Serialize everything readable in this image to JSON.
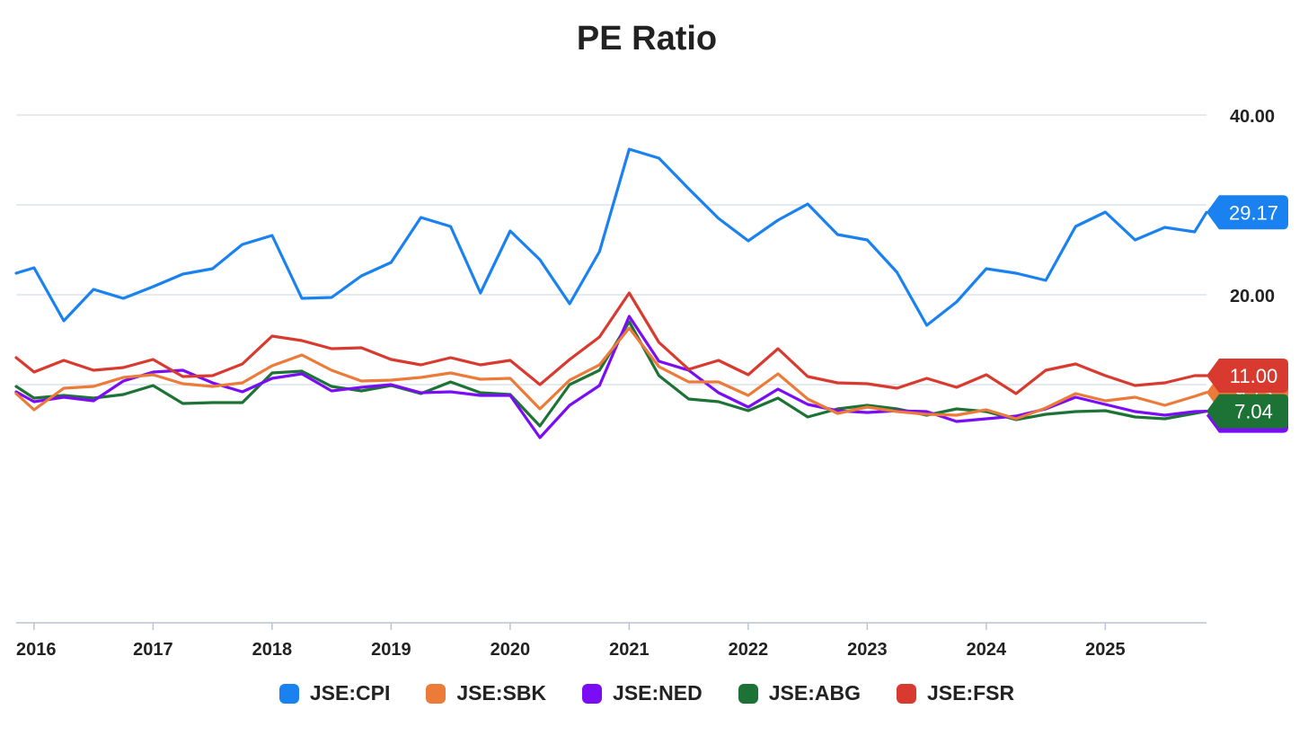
{
  "chart_data": {
    "type": "line",
    "title": "PE Ratio",
    "xlabel": "",
    "ylabel": "",
    "ylim": [
      -16.5,
      40
    ],
    "yticks": [
      {
        "value": 40,
        "label": "40.00"
      },
      {
        "value": 20,
        "label": "20.00"
      }
    ],
    "grid_values": [
      40,
      30,
      20,
      10
    ],
    "xlim": [
      2015.85,
      2025.85
    ],
    "xticks": [
      {
        "value": 2016,
        "label": "2016"
      },
      {
        "value": 2017,
        "label": "2017"
      },
      {
        "value": 2018,
        "label": "2018"
      },
      {
        "value": 2019,
        "label": "2019"
      },
      {
        "value": 2020,
        "label": "2020"
      },
      {
        "value": 2021,
        "label": "2021"
      },
      {
        "value": 2022,
        "label": "2022"
      },
      {
        "value": 2023,
        "label": "2023"
      },
      {
        "value": 2024,
        "label": "2024"
      },
      {
        "value": 2025,
        "label": "2025"
      }
    ],
    "x": [
      2015.85,
      2016.0,
      2016.25,
      2016.5,
      2016.75,
      2017.0,
      2017.25,
      2017.5,
      2017.75,
      2018.0,
      2018.25,
      2018.5,
      2018.75,
      2019.0,
      2019.25,
      2019.5,
      2019.75,
      2020.0,
      2020.25,
      2020.5,
      2020.75,
      2021.0,
      2021.25,
      2021.5,
      2021.75,
      2022.0,
      2022.25,
      2022.5,
      2022.75,
      2023.0,
      2023.25,
      2023.5,
      2023.75,
      2024.0,
      2024.25,
      2024.5,
      2024.75,
      2025.0,
      2025.25,
      2025.5,
      2025.75,
      2025.85
    ],
    "legend_position": "bottom",
    "series": [
      {
        "name": "JSE:CPI",
        "color": "#1a82f0",
        "end_label": "29.17",
        "values": [
          22.4,
          23.0,
          17.1,
          20.6,
          19.6,
          20.9,
          22.3,
          22.9,
          25.6,
          26.6,
          19.6,
          19.7,
          22.1,
          23.6,
          28.6,
          27.6,
          20.2,
          27.1,
          23.9,
          19.0,
          24.8,
          36.2,
          35.2,
          31.8,
          28.5,
          26.0,
          28.3,
          30.1,
          26.7,
          26.1,
          22.5,
          16.6,
          19.2,
          22.9,
          22.4,
          21.6,
          27.6,
          29.2,
          26.1,
          27.5,
          27.0,
          29.17
        ]
      },
      {
        "name": "JSE:SBK",
        "color": "#ec7a38",
        "end_label": "9.13",
        "values": [
          9.0,
          7.2,
          9.6,
          9.8,
          10.8,
          11.1,
          10.1,
          9.8,
          10.2,
          12.1,
          13.3,
          11.6,
          10.4,
          10.5,
          10.8,
          11.3,
          10.6,
          10.7,
          7.3,
          10.5,
          12.2,
          16.3,
          12.0,
          10.3,
          10.3,
          8.8,
          11.2,
          8.4,
          6.8,
          7.5,
          7.0,
          6.7,
          6.6,
          7.2,
          6.2,
          7.4,
          9.0,
          8.2,
          8.6,
          7.7,
          8.7,
          9.13
        ]
      },
      {
        "name": "JSE:NED",
        "color": "#7a0cf6",
        "end_label": "7.04",
        "values": [
          9.2,
          8.1,
          8.6,
          8.2,
          10.4,
          11.4,
          11.6,
          10.2,
          9.2,
          10.7,
          11.2,
          9.3,
          9.7,
          10.0,
          9.1,
          9.2,
          8.8,
          8.8,
          4.1,
          7.7,
          9.9,
          17.6,
          12.6,
          11.6,
          9.1,
          7.5,
          9.5,
          7.8,
          7.1,
          6.9,
          7.1,
          7.0,
          5.9,
          6.2,
          6.5,
          7.3,
          8.6,
          7.8,
          7.0,
          6.6,
          7.0,
          7.04
        ]
      },
      {
        "name": "JSE:ABG",
        "color": "#1d7236",
        "end_label": "7.04",
        "values": [
          9.8,
          8.5,
          8.8,
          8.5,
          8.9,
          9.9,
          7.9,
          8.0,
          8.0,
          11.3,
          11.5,
          9.8,
          9.3,
          9.9,
          9.0,
          10.3,
          9.1,
          8.9,
          5.4,
          10.0,
          11.6,
          17.0,
          11.0,
          8.4,
          8.1,
          7.1,
          8.5,
          6.4,
          7.3,
          7.7,
          7.3,
          6.6,
          7.3,
          7.0,
          6.1,
          6.7,
          7.0,
          7.1,
          6.4,
          6.2,
          6.8,
          7.04
        ]
      },
      {
        "name": "JSE:FSR",
        "color": "#d93a2f",
        "end_label": "11.00",
        "values": [
          13.0,
          11.4,
          12.7,
          11.6,
          11.9,
          12.8,
          10.9,
          11.0,
          12.3,
          15.4,
          14.9,
          14.0,
          14.1,
          12.8,
          12.2,
          13.0,
          12.2,
          12.7,
          10.0,
          12.8,
          15.3,
          20.2,
          14.7,
          11.7,
          12.7,
          11.1,
          14.0,
          10.9,
          10.2,
          10.1,
          9.6,
          10.7,
          9.7,
          11.1,
          9.0,
          11.6,
          12.3,
          11.0,
          9.9,
          10.2,
          11.0,
          11.0
        ]
      }
    ]
  },
  "legend": [
    {
      "label": "JSE:CPI",
      "color": "#1a82f0"
    },
    {
      "label": "JSE:SBK",
      "color": "#ec7a38"
    },
    {
      "label": "JSE:NED",
      "color": "#7a0cf6"
    },
    {
      "label": "JSE:ABG",
      "color": "#1d7236"
    },
    {
      "label": "JSE:FSR",
      "color": "#d93a2f"
    }
  ]
}
